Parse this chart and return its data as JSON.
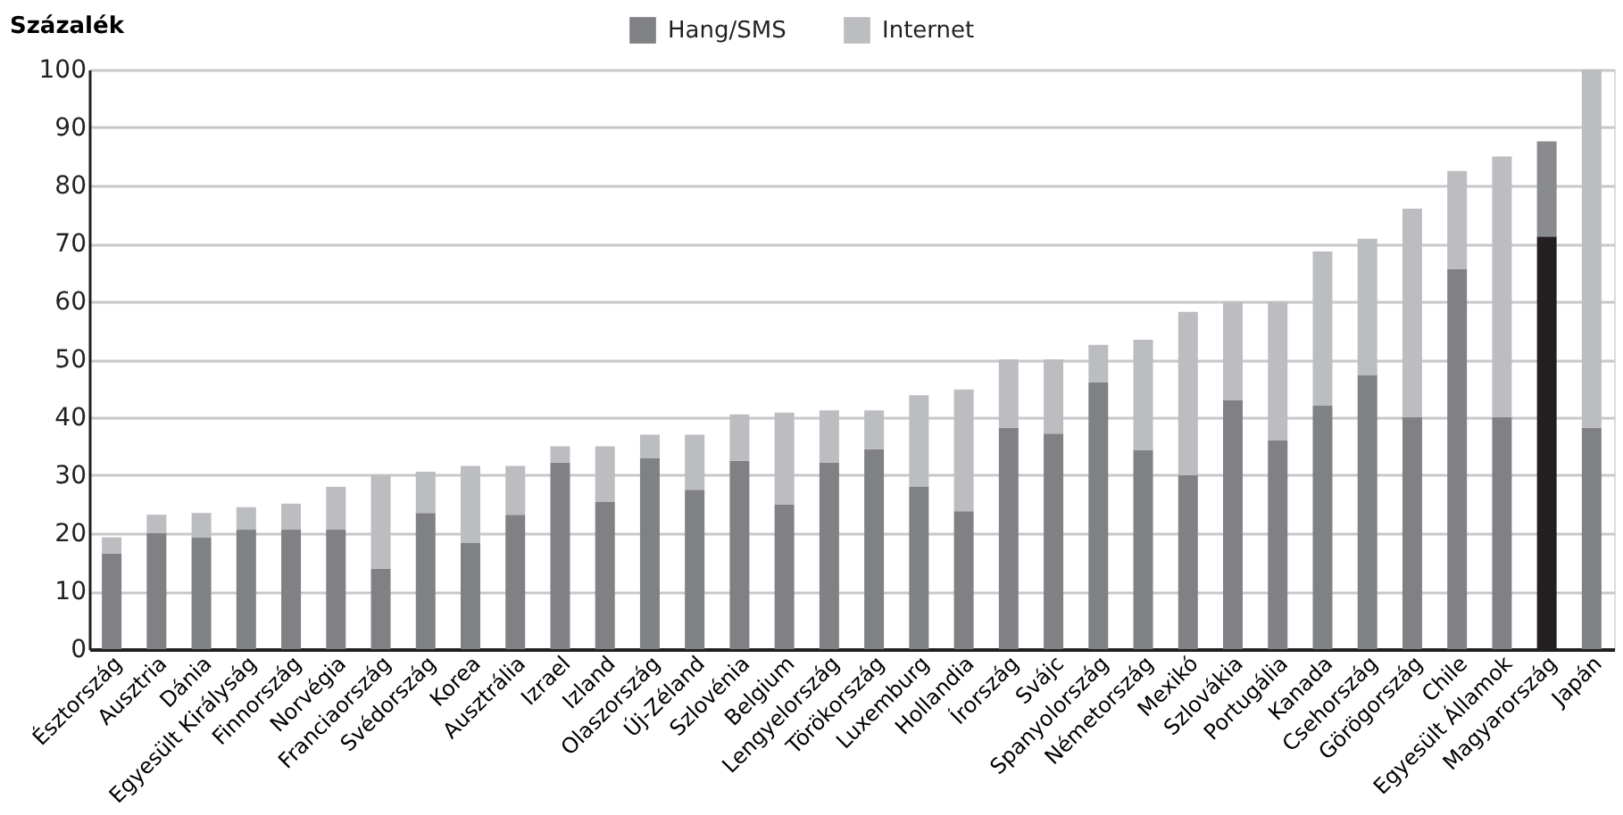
{
  "chart_data": {
    "type": "bar",
    "stacked": true,
    "ylabel": "Százalék",
    "categories": [
      "Észtország",
      "Ausztria",
      "Dánia",
      "Egyesült Királyság",
      "Finnország",
      "Norvégia",
      "Franciaország",
      "Svédország",
      "Korea",
      "Ausztrália",
      "Izrael",
      "Izland",
      "Olaszország",
      "Új-Zéland",
      "Szlovénia",
      "Belgium",
      "Lengyelország",
      "Törökország",
      "Luxemburg",
      "Hollandia",
      "Írország",
      "Svájc",
      "Spanyolország",
      "Németország",
      "Mexikó",
      "Szlovákia",
      "Portugália",
      "Kanada",
      "Csehország",
      "Görögország",
      "Chile",
      "Egyesült Államok",
      "Magyarország",
      "Japán"
    ],
    "series": [
      {
        "name": "Hang/SMS",
        "color": "#808184",
        "colors": [
          "#808184",
          "#808184",
          "#808184",
          "#808184",
          "#808184",
          "#808184",
          "#808184",
          "#808184",
          "#808184",
          "#808184",
          "#808184",
          "#808184",
          "#808184",
          "#808184",
          "#808184",
          "#808184",
          "#808184",
          "#808184",
          "#808184",
          "#808184",
          "#808184",
          "#808184",
          "#808184",
          "#808184",
          "#808184",
          "#808184",
          "#808184",
          "#808184",
          "#808184",
          "#808184",
          "#808184",
          "#808184",
          "#231f20",
          "#808184"
        ],
        "values": [
          16.5,
          20,
          19.3,
          20.6,
          20.6,
          20.6,
          13.9,
          23.5,
          18.3,
          23.2,
          32.2,
          25.4,
          33,
          27.5,
          32.5,
          25,
          32.2,
          34.5,
          28,
          23.8,
          38.2,
          37.2,
          46,
          34.4,
          30,
          43,
          36,
          42,
          47.3,
          40,
          65.6,
          40,
          71.2,
          38.2
        ]
      },
      {
        "name": "Internet",
        "color": "#bcbdc0",
        "colors": [
          "#bcbdc0",
          "#bcbdc0",
          "#bcbdc0",
          "#bcbdc0",
          "#bcbdc0",
          "#bcbdc0",
          "#bcbdc0",
          "#bcbdc0",
          "#bcbdc0",
          "#bcbdc0",
          "#bcbdc0",
          "#bcbdc0",
          "#bcbdc0",
          "#bcbdc0",
          "#bcbdc0",
          "#bcbdc0",
          "#bcbdc0",
          "#bcbdc0",
          "#bcbdc0",
          "#bcbdc0",
          "#bcbdc0",
          "#bcbdc0",
          "#bcbdc0",
          "#bcbdc0",
          "#bcbdc0",
          "#bcbdc0",
          "#bcbdc0",
          "#bcbdc0",
          "#bcbdc0",
          "#bcbdc0",
          "#bcbdc0",
          "#bcbdc0",
          "#8a8b8e",
          "#bcbdc0"
        ],
        "values": [
          2.8,
          3.2,
          4.2,
          3.9,
          4.5,
          7.4,
          16.1,
          7.1,
          13.3,
          8.4,
          2.8,
          9.6,
          4,
          9.5,
          8,
          15.8,
          9,
          6.7,
          15.8,
          21,
          11.8,
          12.8,
          6.5,
          19,
          28.2,
          17,
          24,
          26.6,
          23.5,
          36,
          16.9,
          45,
          16.4,
          61.8
        ]
      }
    ],
    "ylim": [
      0,
      100
    ],
    "yticks": [
      0,
      10,
      20,
      30,
      40,
      50,
      60,
      70,
      80,
      90,
      100
    ],
    "grid": "y",
    "legend": "top"
  }
}
